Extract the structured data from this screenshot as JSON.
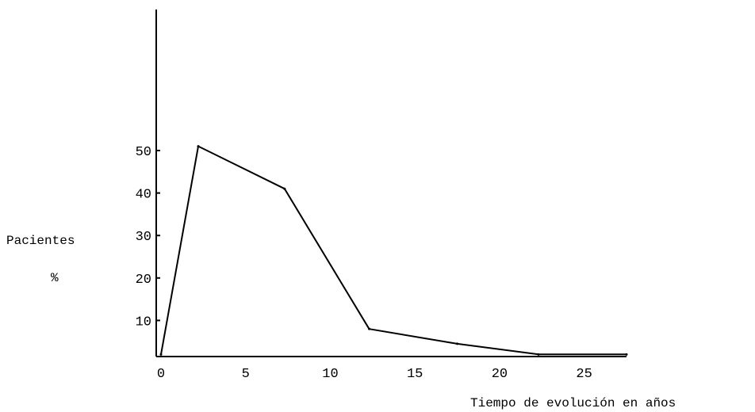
{
  "chart_data": {
    "type": "line",
    "title": "",
    "ylabel": "Pacientes",
    "ylabel_unit": "%",
    "xlabel": "Tiempo de evolución en años",
    "x_ticks": [
      "0",
      "5",
      "10",
      "15",
      "20",
      "25"
    ],
    "y_ticks": [
      "10",
      "20",
      "30",
      "40",
      "50"
    ],
    "xlim": [
      0,
      27.5
    ],
    "ylim": [
      1.5,
      50
    ],
    "grid": false,
    "series": [
      {
        "x": [
          0,
          2.2,
          7.3,
          12.3,
          17.5,
          22.3,
          27.5
        ],
        "y": [
          2,
          51,
          41,
          8,
          4.5,
          2,
          2
        ]
      }
    ]
  }
}
